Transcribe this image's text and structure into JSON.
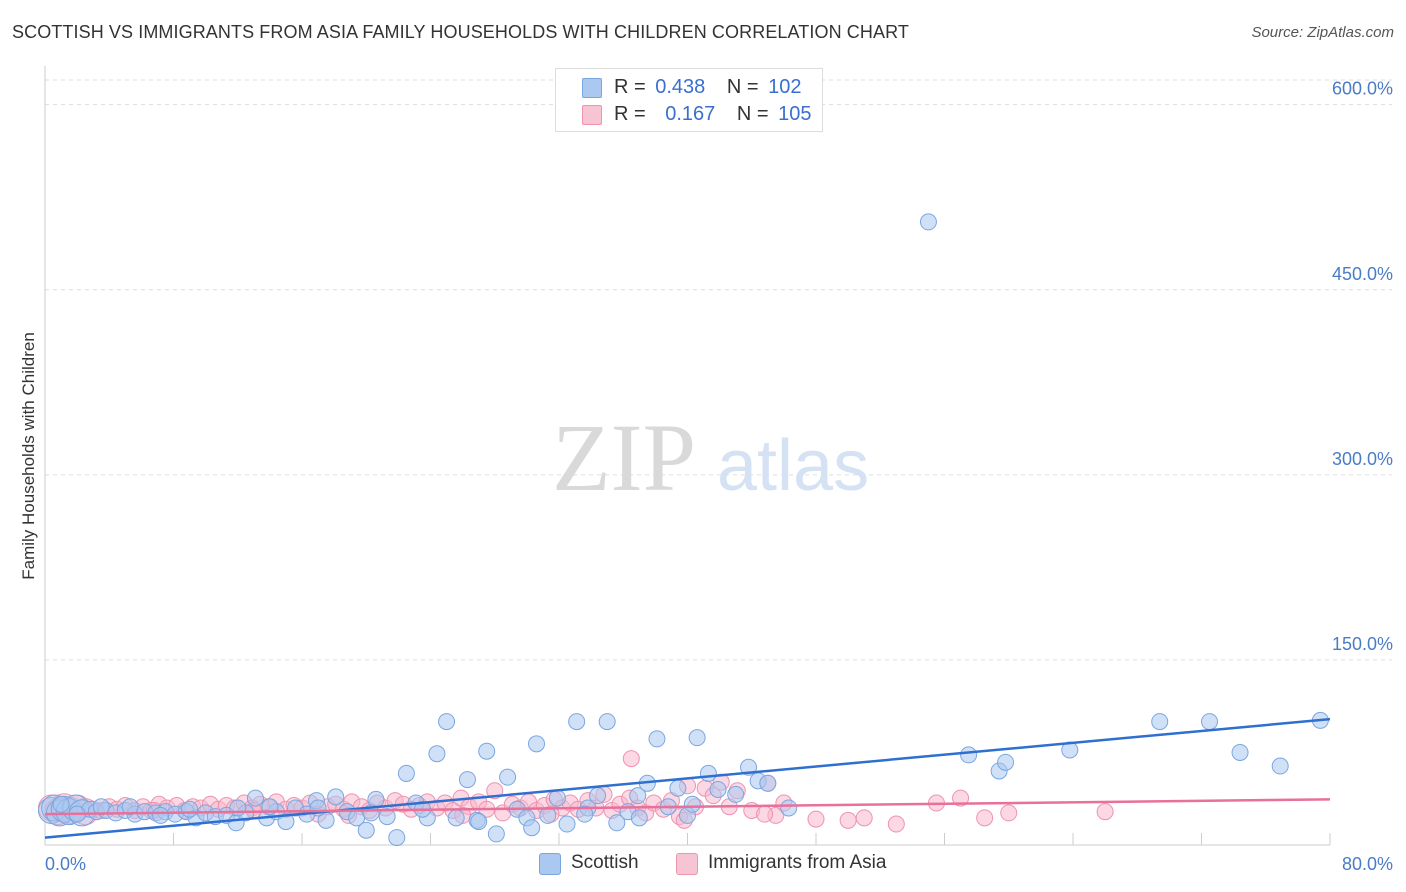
{
  "title": "SCOTTISH VS IMMIGRANTS FROM ASIA FAMILY HOUSEHOLDS WITH CHILDREN CORRELATION CHART",
  "source": "Source: ZipAtlas.com",
  "watermark": {
    "zip": "ZIP",
    "atlas": "atlas"
  },
  "legend_top": [
    {
      "r_label": "R =",
      "r_value": "0.438",
      "n_label": "N =",
      "n_value": "102"
    },
    {
      "r_label": "R =",
      "r_value": "0.167",
      "n_label": "N =",
      "n_value": "105"
    }
  ],
  "legend_bottom": [
    "Scottish",
    "Immigrants from Asia"
  ],
  "colors": {
    "scottish_fill": "#aac8f0",
    "scottish_stroke": "#7aa6e0",
    "scottish_line": "#2e6fd0",
    "asia_fill": "#f7b8cc",
    "asia_stroke": "#ee93b0",
    "asia_line": "#e8709a",
    "axis_text": "#4a7cc6",
    "grid": "#dddddd"
  },
  "chart_data": {
    "type": "scatter",
    "title": "SCOTTISH VS IMMIGRANTS FROM ASIA FAMILY HOUSEHOLDS WITH CHILDREN CORRELATION CHART",
    "xlabel": "",
    "ylabel": "Family Households with Children",
    "xlim": [
      0,
      80
    ],
    "ylim": [
      0,
      620
    ],
    "x_tick_labels": [
      "0.0%",
      "80.0%"
    ],
    "y_ticks": [
      150,
      300,
      450,
      600
    ],
    "y_tick_labels": [
      "150.0%",
      "300.0%",
      "450.0%",
      "600.0%"
    ],
    "series": [
      {
        "name": "Scottish",
        "r": 0.438,
        "n": 102,
        "trend": {
          "x": [
            0,
            80
          ],
          "y": [
            6,
            102
          ]
        },
        "points": [
          [
            0.4,
            28,
            1
          ],
          [
            0.6,
            30,
            1
          ],
          [
            0.9,
            26,
            1
          ],
          [
            1.2,
            29,
            1
          ],
          [
            1.5,
            27,
            1
          ],
          [
            1.9,
            30,
            1
          ],
          [
            2.3,
            26,
            1
          ],
          [
            2.8,
            29,
            0
          ],
          [
            3.2,
            27,
            0
          ],
          [
            3.8,
            28,
            0
          ],
          [
            4.4,
            26,
            0
          ],
          [
            5.0,
            28,
            0
          ],
          [
            5.6,
            25,
            0
          ],
          [
            6.2,
            27,
            0
          ],
          [
            6.9,
            26,
            0
          ],
          [
            7.5,
            27,
            0
          ],
          [
            8.1,
            25,
            0
          ],
          [
            8.8,
            27,
            0
          ],
          [
            9.4,
            22,
            0
          ],
          [
            10.0,
            26,
            0
          ],
          [
            10.6,
            23,
            0
          ],
          [
            11.3,
            24,
            0
          ],
          [
            11.9,
            18,
            0
          ],
          [
            12.5,
            26,
            0
          ],
          [
            13.1,
            38,
            0
          ],
          [
            13.8,
            22,
            0
          ],
          [
            14.4,
            27,
            0
          ],
          [
            15.0,
            19,
            0
          ],
          [
            15.6,
            30,
            0
          ],
          [
            16.3,
            25,
            0
          ],
          [
            16.9,
            36,
            0
          ],
          [
            17.5,
            20,
            0
          ],
          [
            18.1,
            39,
            0
          ],
          [
            18.8,
            27,
            0
          ],
          [
            19.4,
            22,
            0
          ],
          [
            20.0,
            12,
            0
          ],
          [
            20.6,
            37,
            0
          ],
          [
            21.3,
            23,
            0
          ],
          [
            21.9,
            6,
            0
          ],
          [
            22.5,
            58,
            0
          ],
          [
            23.1,
            34,
            0
          ],
          [
            23.8,
            22,
            0
          ],
          [
            24.4,
            74,
            0
          ],
          [
            25.0,
            100,
            0
          ],
          [
            25.6,
            22,
            0
          ],
          [
            26.3,
            53,
            0
          ],
          [
            26.9,
            20,
            0
          ],
          [
            27.5,
            76,
            0
          ],
          [
            28.1,
            9,
            0
          ],
          [
            28.8,
            55,
            0
          ],
          [
            29.4,
            29,
            0
          ],
          [
            30.0,
            22,
            0
          ],
          [
            30.6,
            82,
            0
          ],
          [
            31.3,
            24,
            0
          ],
          [
            31.9,
            38,
            0
          ],
          [
            32.5,
            17,
            0
          ],
          [
            33.1,
            100,
            0
          ],
          [
            33.8,
            30,
            0
          ],
          [
            34.4,
            40,
            0
          ],
          [
            35.0,
            100,
            0
          ],
          [
            35.6,
            18,
            0
          ],
          [
            36.3,
            27,
            0
          ],
          [
            36.9,
            40,
            0
          ],
          [
            37.5,
            50,
            0
          ],
          [
            38.1,
            86,
            0
          ],
          [
            38.8,
            31,
            0
          ],
          [
            39.4,
            46,
            0
          ],
          [
            40.0,
            24,
            0
          ],
          [
            40.6,
            87,
            0
          ],
          [
            41.3,
            58,
            0
          ],
          [
            41.9,
            45,
            0
          ],
          [
            43.8,
            63,
            0
          ],
          [
            44.4,
            52,
            0
          ],
          [
            45.0,
            50,
            0
          ],
          [
            46.3,
            30,
            0
          ],
          [
            55.0,
            505,
            0
          ],
          [
            57.5,
            73,
            0
          ],
          [
            59.4,
            60,
            0
          ],
          [
            59.8,
            67,
            0
          ],
          [
            63.8,
            77,
            0
          ],
          [
            69.4,
            100,
            0
          ],
          [
            72.5,
            100,
            0
          ],
          [
            74.4,
            75,
            0
          ],
          [
            76.9,
            64,
            0
          ],
          [
            79.4,
            101,
            0
          ],
          [
            1.0,
            33,
            0
          ],
          [
            2.0,
            25,
            0
          ],
          [
            3.5,
            31,
            0
          ],
          [
            5.3,
            31,
            0
          ],
          [
            7.2,
            24,
            0
          ],
          [
            9.0,
            29,
            0
          ],
          [
            12.0,
            30,
            0
          ],
          [
            14.0,
            31,
            0
          ],
          [
            17.0,
            30,
            0
          ],
          [
            20.3,
            26,
            0
          ],
          [
            23.5,
            29,
            0
          ],
          [
            27.0,
            19,
            0
          ],
          [
            30.3,
            14,
            0
          ],
          [
            33.6,
            25,
            0
          ],
          [
            37.0,
            22,
            0
          ],
          [
            40.3,
            33,
            0
          ],
          [
            43.0,
            41,
            0
          ]
        ]
      },
      {
        "name": "Immigrants from Asia",
        "r": 0.167,
        "n": 105,
        "trend": {
          "x": [
            0,
            80
          ],
          "y": [
            25,
            37
          ]
        },
        "points": [
          [
            0.4,
            30,
            1
          ],
          [
            0.8,
            27,
            1
          ],
          [
            1.2,
            31,
            1
          ],
          [
            1.6,
            28,
            1
          ],
          [
            2.0,
            30,
            1
          ],
          [
            2.5,
            27,
            1
          ],
          [
            3.0,
            29,
            0
          ],
          [
            3.5,
            28,
            0
          ],
          [
            4.0,
            31,
            0
          ],
          [
            4.5,
            29,
            0
          ],
          [
            5.0,
            32,
            0
          ],
          [
            5.6,
            28,
            0
          ],
          [
            6.1,
            31,
            0
          ],
          [
            6.6,
            28,
            0
          ],
          [
            7.1,
            33,
            0
          ],
          [
            7.6,
            30,
            0
          ],
          [
            8.2,
            32,
            0
          ],
          [
            8.7,
            28,
            0
          ],
          [
            9.2,
            31,
            0
          ],
          [
            9.7,
            30,
            0
          ],
          [
            10.3,
            33,
            0
          ],
          [
            10.8,
            29,
            0
          ],
          [
            11.3,
            32,
            0
          ],
          [
            11.8,
            30,
            0
          ],
          [
            12.4,
            34,
            0
          ],
          [
            12.9,
            30,
            0
          ],
          [
            13.4,
            33,
            0
          ],
          [
            13.9,
            31,
            0
          ],
          [
            14.4,
            35,
            0
          ],
          [
            15.0,
            29,
            0
          ],
          [
            15.5,
            32,
            0
          ],
          [
            16.0,
            30,
            0
          ],
          [
            16.5,
            34,
            0
          ],
          [
            17.0,
            25,
            0
          ],
          [
            17.6,
            31,
            0
          ],
          [
            18.1,
            33,
            0
          ],
          [
            18.6,
            29,
            0
          ],
          [
            19.1,
            35,
            0
          ],
          [
            19.7,
            31,
            0
          ],
          [
            20.2,
            28,
            0
          ],
          [
            20.7,
            34,
            0
          ],
          [
            21.2,
            30,
            0
          ],
          [
            21.8,
            36,
            0
          ],
          [
            22.3,
            33,
            0
          ],
          [
            22.8,
            29,
            0
          ],
          [
            23.3,
            32,
            0
          ],
          [
            23.8,
            35,
            0
          ],
          [
            24.4,
            30,
            0
          ],
          [
            24.9,
            34,
            0
          ],
          [
            25.4,
            28,
            0
          ],
          [
            25.9,
            38,
            0
          ],
          [
            26.4,
            31,
            0
          ],
          [
            27.0,
            35,
            0
          ],
          [
            27.5,
            29,
            0
          ],
          [
            28.0,
            44,
            0
          ],
          [
            28.5,
            26,
            0
          ],
          [
            29.1,
            33,
            0
          ],
          [
            29.6,
            30,
            0
          ],
          [
            30.1,
            35,
            0
          ],
          [
            30.6,
            28,
            0
          ],
          [
            31.1,
            32,
            0
          ],
          [
            31.7,
            37,
            0
          ],
          [
            32.2,
            30,
            0
          ],
          [
            32.7,
            34,
            0
          ],
          [
            33.2,
            29,
            0
          ],
          [
            33.8,
            36,
            0
          ],
          [
            34.3,
            30,
            0
          ],
          [
            34.8,
            41,
            0
          ],
          [
            35.3,
            28,
            0
          ],
          [
            35.8,
            33,
            0
          ],
          [
            36.4,
            38,
            0
          ],
          [
            36.9,
            30,
            0
          ],
          [
            37.4,
            26,
            0
          ],
          [
            37.9,
            34,
            0
          ],
          [
            38.5,
            29,
            0
          ],
          [
            39.0,
            36,
            0
          ],
          [
            39.5,
            23,
            0
          ],
          [
            40.0,
            48,
            0
          ],
          [
            40.5,
            31,
            0
          ],
          [
            41.1,
            46,
            0
          ],
          [
            41.6,
            40,
            0
          ],
          [
            42.1,
            51,
            0
          ],
          [
            42.6,
            31,
            0
          ],
          [
            43.1,
            44,
            0
          ],
          [
            45.0,
            50,
            0
          ],
          [
            36.5,
            70,
            0
          ],
          [
            44.0,
            28,
            0
          ],
          [
            45.5,
            24,
            0
          ],
          [
            46.0,
            34,
            0
          ],
          [
            48.0,
            21,
            0
          ],
          [
            50.0,
            20,
            0
          ],
          [
            53.0,
            17,
            0
          ],
          [
            55.5,
            34,
            0
          ],
          [
            57.0,
            38,
            0
          ],
          [
            60.0,
            26,
            0
          ],
          [
            66.0,
            27,
            0
          ],
          [
            6.8,
            28,
            0
          ],
          [
            13.0,
            28,
            0
          ],
          [
            18.9,
            24,
            0
          ],
          [
            26.0,
            24,
            0
          ],
          [
            31.5,
            25,
            0
          ],
          [
            39.8,
            20,
            0
          ],
          [
            44.8,
            25,
            0
          ],
          [
            51.0,
            22,
            0
          ],
          [
            58.5,
            22,
            0
          ]
        ]
      }
    ]
  }
}
